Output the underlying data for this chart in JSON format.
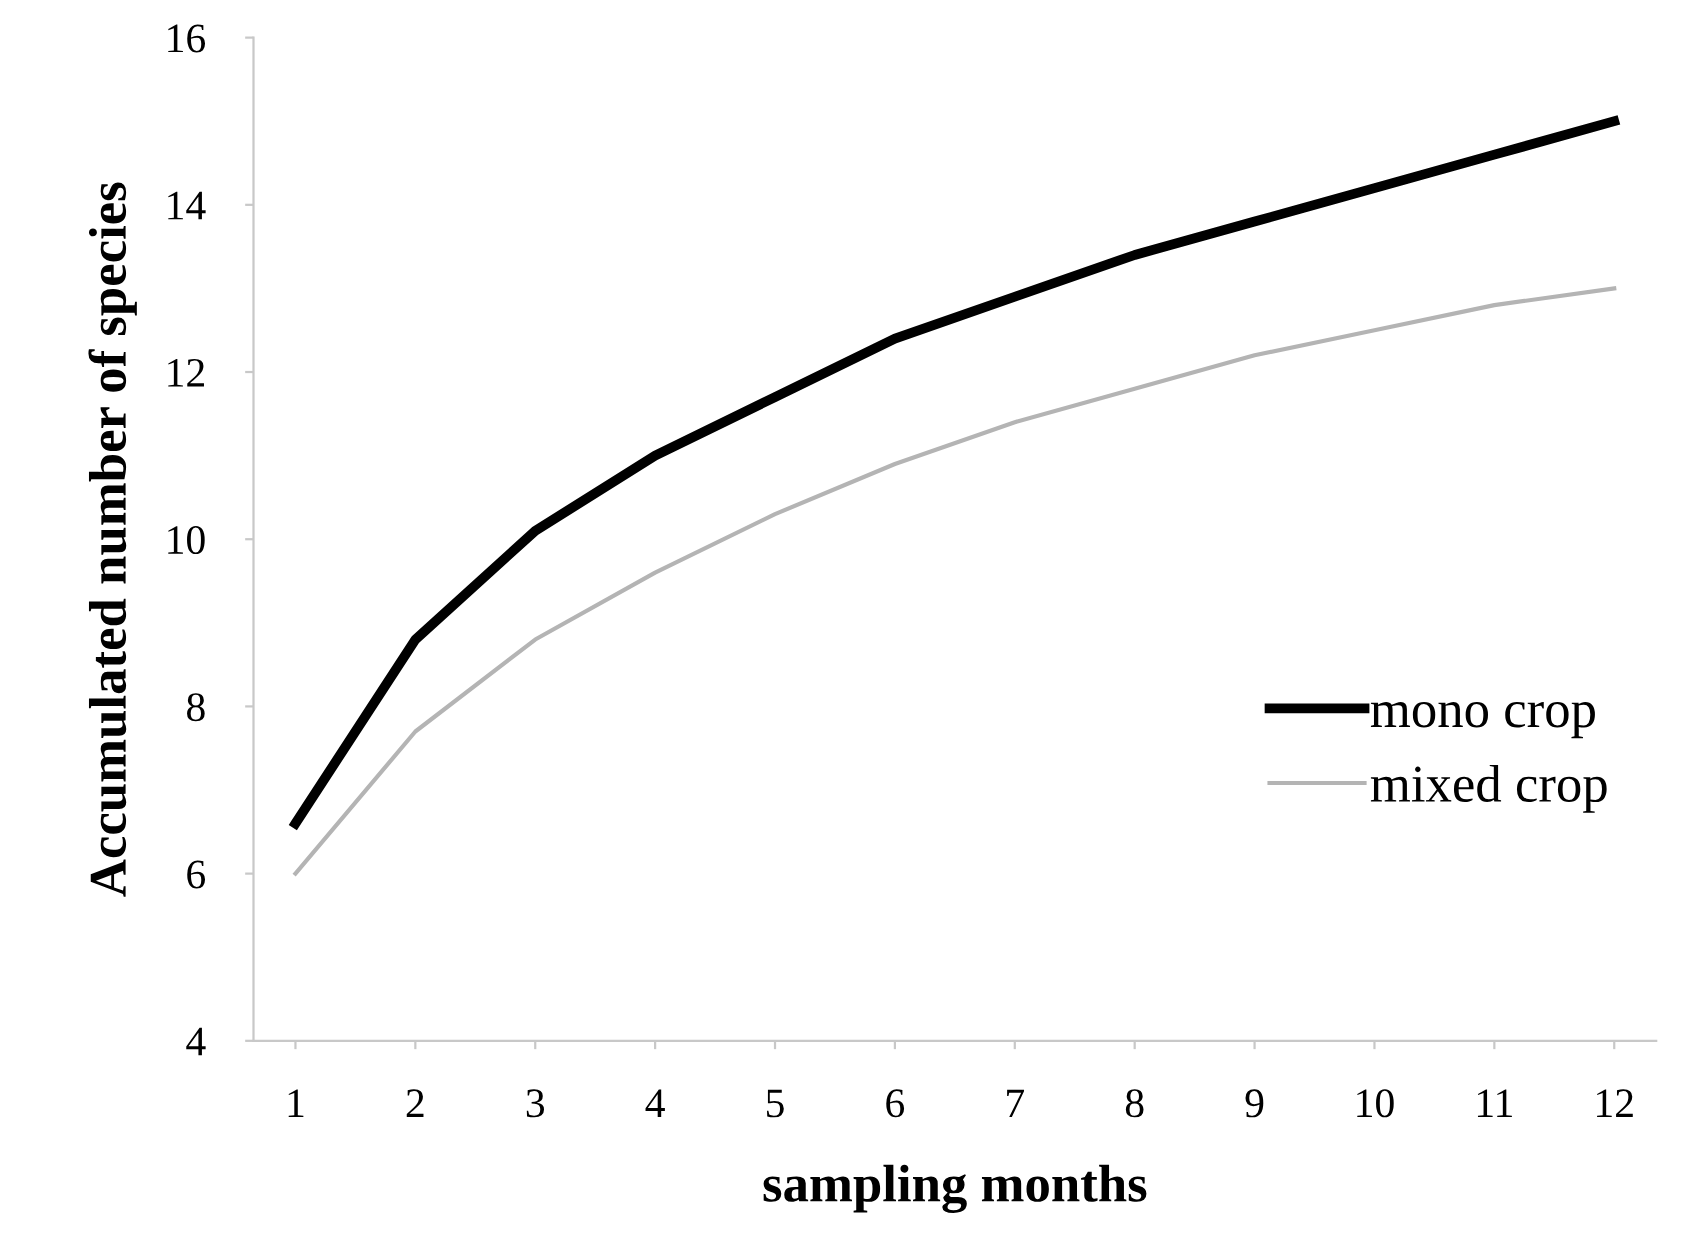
{
  "chart_data": {
    "type": "line",
    "xlabel": "sampling months",
    "ylabel": "Accumulated number of species",
    "categories": [
      "1",
      "2",
      "3",
      "4",
      "5",
      "6",
      "7",
      "8",
      "9",
      "10",
      "11",
      "12"
    ],
    "series": [
      {
        "name": "mono crop",
        "color": "#000000",
        "values": [
          6.6,
          8.8,
          10.1,
          11.0,
          11.7,
          12.4,
          12.9,
          13.4,
          13.8,
          14.2,
          14.6,
          15.0
        ]
      },
      {
        "name": "mixed crop",
        "color": "#b4b4b4",
        "values": [
          6.0,
          7.7,
          8.8,
          9.6,
          10.3,
          10.9,
          11.4,
          11.8,
          12.2,
          12.5,
          12.8,
          13.0
        ]
      }
    ],
    "ylim": [
      4,
      16
    ],
    "yticks": [
      4,
      6,
      8,
      10,
      12,
      14,
      16
    ],
    "grid": false,
    "legend": "bottom right",
    "marker": "none",
    "line_style": "solid"
  }
}
